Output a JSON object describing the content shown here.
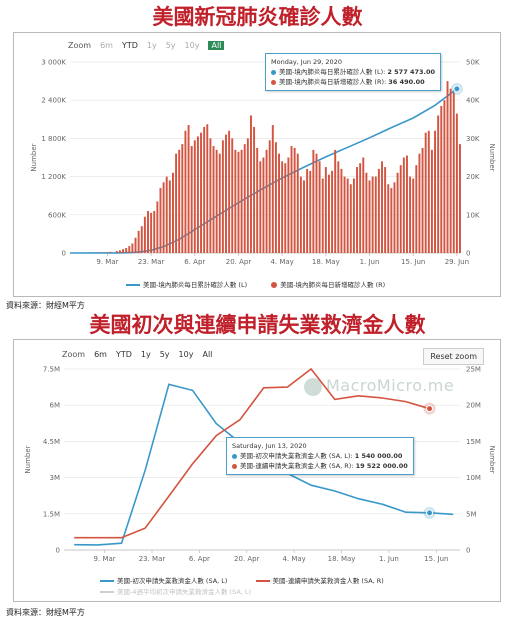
{
  "title1": "美國新冠肺炎確診人數",
  "title2": "美國初次與連續申請失業救濟金人數",
  "source1": "資料來源：財經M平方",
  "source2": "資料來源：財經M平方",
  "chart1_zoom": {
    "label": "Zoom",
    "buttons": [
      {
        "label": "6m",
        "state": "dim"
      },
      {
        "label": "YTD",
        "state": "normal"
      },
      {
        "label": "1y",
        "state": "dim"
      },
      {
        "label": "5y",
        "state": "dim"
      },
      {
        "label": "10y",
        "state": "dim"
      },
      {
        "label": "All",
        "state": "active"
      }
    ]
  },
  "chart2_zoom": {
    "label": "Zoom",
    "buttons": [
      {
        "label": "6m",
        "state": "normal"
      },
      {
        "label": "YTD",
        "state": "normal"
      },
      {
        "label": "1y",
        "state": "normal"
      },
      {
        "label": "5y",
        "state": "normal"
      },
      {
        "label": "10y",
        "state": "normal"
      },
      {
        "label": "All",
        "state": "normal"
      }
    ]
  },
  "reset_zoom_label": "Reset zoom",
  "watermark_text": "MacroMicro.me",
  "tooltip1": {
    "date": "Monday, Jun 29, 2020",
    "line1": "美國-境內肺炎每日累計確診人數 (L): ",
    "value1": "2 577 473.00",
    "line2": "美國-境內肺炎每日新增確診人數 (R): ",
    "value2": "36 490.00"
  },
  "tooltip2": {
    "date": "Saturday, Jun 13, 2020",
    "line1": "美國-初次申請失業救濟金人數 (SA, L): ",
    "value1": "1 540 000.00",
    "line2": "美國-連續申請失業救濟金人數 (SA, R): ",
    "value2": "19 522 000.00"
  },
  "colors": {
    "blue": "#3a98c9",
    "red": "#d35440",
    "green": "#2e8b57"
  },
  "chart_data": [
    {
      "type": "bar+line",
      "title": "美國新冠肺炎確診人數",
      "xlabel": "",
      "ylabel_left": "Number",
      "ylabel_right": "Number",
      "x_ticks": [
        "9. Mar",
        "23. Mar",
        "6. Apr",
        "20. Apr",
        "4. May",
        "18. May",
        "1. Jun",
        "15. Jun",
        "29. Jun"
      ],
      "x_range": [
        "2020-02-26",
        "2020-06-30"
      ],
      "ylim_left": [
        0,
        3000000
      ],
      "yticks_left": [
        "0",
        "600K",
        "1 200K",
        "1 800K",
        "2 400K",
        "3 000K"
      ],
      "ylim_right": [
        0,
        50000
      ],
      "yticks_right": [
        "0",
        "10K",
        "20K",
        "30K",
        "40K",
        "50K"
      ],
      "grid": true,
      "legend": "bottom",
      "series": [
        {
          "name": "美國-境內肺炎每日累計確診人數 (L)",
          "kind": "line",
          "axis": "left",
          "points": [
            [
              "2020-02-26",
              0
            ],
            [
              "2020-03-05",
              1000
            ],
            [
              "2020-03-12",
              2000
            ],
            [
              "2020-03-16",
              5000
            ],
            [
              "2020-03-19",
              14000
            ],
            [
              "2020-03-23",
              43000
            ],
            [
              "2020-03-27",
              100000
            ],
            [
              "2020-04-01",
              215000
            ],
            [
              "2020-04-06",
              367000
            ],
            [
              "2020-04-13",
              580000
            ],
            [
              "2020-04-20",
              790000
            ],
            [
              "2020-04-27",
              990000
            ],
            [
              "2020-05-04",
              1180000
            ],
            [
              "2020-05-11",
              1350000
            ],
            [
              "2020-05-18",
              1510000
            ],
            [
              "2020-05-25",
              1660000
            ],
            [
              "2020-06-01",
              1810000
            ],
            [
              "2020-06-08",
              1970000
            ],
            [
              "2020-06-15",
              2120000
            ],
            [
              "2020-06-22",
              2320000
            ],
            [
              "2020-06-29",
              2577473
            ]
          ]
        },
        {
          "name": "美國-境內肺炎每日新增確診人數 (R)",
          "kind": "bar",
          "axis": "right",
          "points": [
            [
              "2020-03-04",
              50
            ],
            [
              "2020-03-06",
              80
            ],
            [
              "2020-03-08",
              150
            ],
            [
              "2020-03-10",
              300
            ],
            [
              "2020-03-12",
              500
            ],
            [
              "2020-03-13",
              700
            ],
            [
              "2020-03-14",
              1000
            ],
            [
              "2020-03-15",
              1300
            ],
            [
              "2020-03-16",
              1800
            ],
            [
              "2020-03-17",
              2500
            ],
            [
              "2020-03-18",
              4000
            ],
            [
              "2020-03-19",
              5800
            ],
            [
              "2020-03-20",
              7000
            ],
            [
              "2020-03-21",
              9500
            ],
            [
              "2020-03-22",
              11000
            ],
            [
              "2020-03-23",
              10500
            ],
            [
              "2020-03-24",
              11000
            ],
            [
              "2020-03-25",
              13500
            ],
            [
              "2020-03-26",
              17000
            ],
            [
              "2020-03-27",
              18500
            ],
            [
              "2020-03-28",
              20000
            ],
            [
              "2020-03-29",
              19000
            ],
            [
              "2020-03-30",
              21000
            ],
            [
              "2020-03-31",
              26000
            ],
            [
              "2020-04-01",
              27000
            ],
            [
              "2020-04-02",
              28500
            ],
            [
              "2020-04-03",
              32000
            ],
            [
              "2020-04-04",
              33500
            ],
            [
              "2020-04-05",
              28000
            ],
            [
              "2020-04-06",
              29500
            ],
            [
              "2020-04-07",
              30500
            ],
            [
              "2020-04-08",
              31500
            ],
            [
              "2020-04-09",
              33000
            ],
            [
              "2020-04-10",
              33700
            ],
            [
              "2020-04-11",
              30000
            ],
            [
              "2020-04-12",
              28000
            ],
            [
              "2020-04-13",
              27000
            ],
            [
              "2020-04-14",
              26000
            ],
            [
              "2020-04-15",
              29500
            ],
            [
              "2020-04-16",
              31000
            ],
            [
              "2020-04-17",
              32000
            ],
            [
              "2020-04-18",
              30000
            ],
            [
              "2020-04-19",
              27000
            ],
            [
              "2020-04-20",
              26500
            ],
            [
              "2020-04-21",
              27000
            ],
            [
              "2020-04-22",
              28500
            ],
            [
              "2020-04-23",
              30000
            ],
            [
              "2020-04-24",
              36000
            ],
            [
              "2020-04-25",
              33000
            ],
            [
              "2020-04-26",
              27500
            ],
            [
              "2020-04-27",
              24000
            ],
            [
              "2020-04-28",
              25000
            ],
            [
              "2020-04-29",
              27000
            ],
            [
              "2020-04-30",
              29500
            ],
            [
              "2020-05-01",
              33500
            ],
            [
              "2020-05-02",
              29000
            ],
            [
              "2020-05-03",
              26000
            ],
            [
              "2020-05-04",
              24000
            ],
            [
              "2020-05-05",
              23500
            ],
            [
              "2020-05-06",
              25000
            ],
            [
              "2020-05-07",
              28000
            ],
            [
              "2020-05-08",
              27500
            ],
            [
              "2020-05-09",
              26000
            ],
            [
              "2020-05-10",
              20000
            ],
            [
              "2020-05-11",
              19000
            ],
            [
              "2020-05-12",
              22000
            ],
            [
              "2020-05-13",
              21500
            ],
            [
              "2020-05-14",
              27000
            ],
            [
              "2020-05-15",
              26000
            ],
            [
              "2020-05-16",
              24000
            ],
            [
              "2020-05-17",
              19500
            ],
            [
              "2020-05-18",
              22500
            ],
            [
              "2020-05-19",
              20500
            ],
            [
              "2020-05-20",
              21500
            ],
            [
              "2020-05-21",
              27000
            ],
            [
              "2020-05-22",
              24000
            ],
            [
              "2020-05-23",
              22000
            ],
            [
              "2020-05-24",
              20000
            ],
            [
              "2020-05-25",
              19500
            ],
            [
              "2020-05-26",
              18000
            ],
            [
              "2020-05-27",
              19500
            ],
            [
              "2020-05-28",
              22500
            ],
            [
              "2020-05-29",
              23500
            ],
            [
              "2020-05-30",
              25000
            ],
            [
              "2020-05-31",
              21000
            ],
            [
              "2020-06-01",
              19000
            ],
            [
              "2020-06-02",
              20000
            ],
            [
              "2020-06-03",
              20000
            ],
            [
              "2020-06-04",
              22000
            ],
            [
              "2020-06-05",
              24000
            ],
            [
              "2020-06-06",
              22500
            ],
            [
              "2020-06-07",
              18000
            ],
            [
              "2020-06-08",
              17000
            ],
            [
              "2020-06-09",
              18500
            ],
            [
              "2020-06-10",
              21000
            ],
            [
              "2020-06-11",
              23000
            ],
            [
              "2020-06-12",
              25000
            ],
            [
              "2020-06-13",
              25500
            ],
            [
              "2020-06-14",
              20000
            ],
            [
              "2020-06-15",
              19500
            ],
            [
              "2020-06-16",
              23000
            ],
            [
              "2020-06-17",
              26000
            ],
            [
              "2020-06-18",
              27500
            ],
            [
              "2020-06-19",
              31500
            ],
            [
              "2020-06-20",
              32000
            ],
            [
              "2020-06-21",
              27000
            ],
            [
              "2020-06-22",
              32000
            ],
            [
              "2020-06-23",
              36000
            ],
            [
              "2020-06-24",
              38500
            ],
            [
              "2020-06-25",
              40000
            ],
            [
              "2020-06-26",
              45000
            ],
            [
              "2020-06-27",
              43000
            ],
            [
              "2020-06-28",
              42000
            ],
            [
              "2020-06-29",
              36490
            ],
            [
              "2020-06-30",
              28500
            ]
          ]
        }
      ]
    },
    {
      "type": "line",
      "title": "美國初次與連續申請失業救濟金人數",
      "xlabel": "",
      "ylabel_left": "Number",
      "ylabel_right": "Number",
      "x_ticks": [
        "9. Mar",
        "23. Mar",
        "6. Apr",
        "20. Apr",
        "4. May",
        "18. May",
        "1. Jun",
        "15. Jun"
      ],
      "x_range": [
        "2020-02-26",
        "2020-06-22"
      ],
      "ylim_left": [
        0,
        7500000
      ],
      "yticks_left": [
        "0",
        "1.5M",
        "3M",
        "4.5M",
        "6M",
        "7.5M"
      ],
      "ylim_right": [
        0,
        25000000
      ],
      "yticks_right": [
        "0",
        "5M",
        "10M",
        "15M",
        "20M",
        "25M"
      ],
      "grid": true,
      "legend": "bottom",
      "series": [
        {
          "name": "美國-初次申請失業救濟金人數 (SA, L)",
          "axis": "left",
          "points": [
            [
              "2020-02-29",
              219000
            ],
            [
              "2020-03-07",
              211000
            ],
            [
              "2020-03-14",
              282000
            ],
            [
              "2020-03-21",
              3307000
            ],
            [
              "2020-03-28",
              6867000
            ],
            [
              "2020-04-04",
              6615000
            ],
            [
              "2020-04-11",
              5237000
            ],
            [
              "2020-04-18",
              4442000
            ],
            [
              "2020-04-25",
              3867000
            ],
            [
              "2020-05-02",
              3176000
            ],
            [
              "2020-05-09",
              2687000
            ],
            [
              "2020-05-16",
              2446000
            ],
            [
              "2020-05-23",
              2126000
            ],
            [
              "2020-05-30",
              1897000
            ],
            [
              "2020-06-06",
              1566000
            ],
            [
              "2020-06-13",
              1540000
            ],
            [
              "2020-06-20",
              1480000
            ]
          ]
        },
        {
          "name": "美國-連續申請失業救濟金人數 (SA, R)",
          "axis": "right",
          "points": [
            [
              "2020-02-29",
              1700000
            ],
            [
              "2020-03-07",
              1700000
            ],
            [
              "2020-03-14",
              1700000
            ],
            [
              "2020-03-21",
              3030000
            ],
            [
              "2020-03-28",
              7450000
            ],
            [
              "2020-04-04",
              11900000
            ],
            [
              "2020-04-11",
              15800000
            ],
            [
              "2020-04-18",
              18000000
            ],
            [
              "2020-04-25",
              22400000
            ],
            [
              "2020-05-02",
              22500000
            ],
            [
              "2020-05-09",
              25000000
            ],
            [
              "2020-05-16",
              20800000
            ],
            [
              "2020-05-23",
              21300000
            ],
            [
              "2020-05-30",
              21000000
            ],
            [
              "2020-06-06",
              20500000
            ],
            [
              "2020-06-13",
              19522000
            ]
          ]
        },
        {
          "name": "美國-4週平均初次申請失業救濟金人數 (SA, L)",
          "axis": "left",
          "hidden": true,
          "points": []
        }
      ]
    }
  ]
}
